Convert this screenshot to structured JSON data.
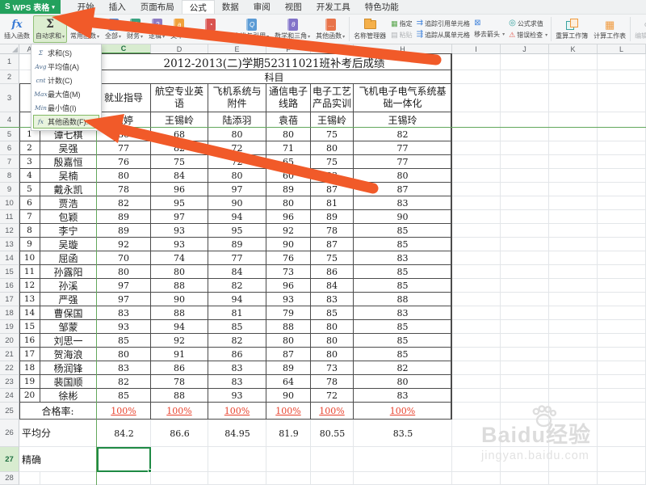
{
  "titlebar": {
    "logo_text": "S",
    "app_name": "WPS 表格",
    "tabs": [
      "开始",
      "插入",
      "页面布局",
      "公式",
      "数据",
      "审阅",
      "视图",
      "开发工具",
      "特色功能"
    ],
    "active_tab": "公式"
  },
  "ribbon": {
    "insert_function_label": "插入函数",
    "autosum_label": "自动求和",
    "categories": [
      {
        "label": "常用函数",
        "glyph": "fx",
        "color": "#5aa64e"
      },
      {
        "label": "全部",
        "glyph": "=",
        "color": "#4a89dc"
      },
      {
        "label": "财务",
        "glyph": "$",
        "color": "#3aa381"
      },
      {
        "label": "逻辑",
        "glyph": "?",
        "color": "#8e7cc3"
      },
      {
        "label": "文本",
        "glyph": "a",
        "color": "#f0a23c"
      },
      {
        "label": "日期和时间",
        "glyph": "◔",
        "color": "#d95450"
      },
      {
        "label": "查找与引用",
        "glyph": "Q",
        "color": "#5b9bd5"
      },
      {
        "label": "数学和三角",
        "glyph": "θ",
        "color": "#8273c9"
      },
      {
        "label": "其他函数",
        "glyph": "…",
        "color": "#e8734a"
      }
    ],
    "tools": {
      "name_manager": "名称管理器",
      "assign": "指定",
      "paste": "粘贴",
      "trace_precedents": "追踪引用单元格",
      "trace_dependents": "追踪从属单元格",
      "remove_arrows": "移去箭头",
      "evaluate_formula": "公式求值",
      "error_check": "错误检查",
      "recalc_workbook": "重算工作簿",
      "calc_worksheet": "计算工作表",
      "edit_links": "编辑链接"
    }
  },
  "autosum_menu": {
    "items": [
      {
        "icon": "Σ",
        "label": "求和(S)"
      },
      {
        "icon": "Avg",
        "label": "平均值(A)"
      },
      {
        "icon": "cnt",
        "label": "计数(C)"
      },
      {
        "icon": "Max",
        "label": "最大值(M)"
      },
      {
        "icon": "Min",
        "label": "最小值(I)"
      },
      {
        "icon": "fx",
        "label": "其他函数(F)..."
      }
    ],
    "highlighted_index": 5
  },
  "sheet": {
    "column_letters": [
      "A",
      "B",
      "C",
      "D",
      "E",
      "F",
      "G",
      "H",
      "I",
      "J",
      "K",
      "L"
    ],
    "title": "2012-2013(二)学期52311021班补考后成绩",
    "subject_row_label": "科目",
    "subjects": [
      {
        "name": "就业指导",
        "teacher": "徐婷"
      },
      {
        "name": "航空专业英语",
        "teacher": "王锡岭"
      },
      {
        "name": "飞机系统与附件",
        "teacher": "陆添羽"
      },
      {
        "name": "通信电子线路",
        "teacher": "袁蓓"
      },
      {
        "name": "电子工艺产品实训",
        "teacher": "王锡岭"
      },
      {
        "name": "飞机电子电气系统基础一体化",
        "teacher": "王锡玲"
      }
    ],
    "students": [
      {
        "no": "1",
        "name": "谭七棋",
        "scores": [
          "86",
          "68",
          "80",
          "80",
          "75",
          "82"
        ]
      },
      {
        "no": "2",
        "name": "吴强",
        "scores": [
          "77",
          "82",
          "72",
          "71",
          "80",
          "77"
        ]
      },
      {
        "no": "3",
        "name": "殷嘉恒",
        "scores": [
          "76",
          "75",
          "72",
          "65",
          "75",
          "77"
        ]
      },
      {
        "no": "4",
        "name": "吴楠",
        "scores": [
          "80",
          "84",
          "80",
          "60",
          "83",
          "80"
        ]
      },
      {
        "no": "5",
        "name": "戴永凯",
        "scores": [
          "78",
          "96",
          "97",
          "89",
          "87",
          "87"
        ]
      },
      {
        "no": "6",
        "name": "贾浩",
        "scores": [
          "82",
          "95",
          "90",
          "80",
          "81",
          "83"
        ]
      },
      {
        "no": "7",
        "name": "包颖",
        "scores": [
          "89",
          "97",
          "94",
          "96",
          "89",
          "90"
        ]
      },
      {
        "no": "8",
        "name": "李宁",
        "scores": [
          "89",
          "93",
          "95",
          "92",
          "78",
          "85"
        ]
      },
      {
        "no": "9",
        "name": "吴璇",
        "scores": [
          "92",
          "93",
          "89",
          "90",
          "87",
          "85"
        ]
      },
      {
        "no": "10",
        "name": "屈函",
        "scores": [
          "70",
          "74",
          "77",
          "76",
          "75",
          "83"
        ]
      },
      {
        "no": "11",
        "name": "孙露阳",
        "scores": [
          "80",
          "80",
          "84",
          "73",
          "86",
          "85"
        ]
      },
      {
        "no": "12",
        "name": "孙溪",
        "scores": [
          "97",
          "88",
          "82",
          "96",
          "84",
          "85"
        ]
      },
      {
        "no": "13",
        "name": "严强",
        "scores": [
          "97",
          "90",
          "94",
          "93",
          "83",
          "88"
        ]
      },
      {
        "no": "14",
        "name": "曹保国",
        "scores": [
          "83",
          "88",
          "81",
          "79",
          "85",
          "83"
        ]
      },
      {
        "no": "15",
        "name": "邹蒙",
        "scores": [
          "93",
          "94",
          "85",
          "88",
          "80",
          "85"
        ]
      },
      {
        "no": "16",
        "name": "刘思一",
        "scores": [
          "85",
          "92",
          "82",
          "80",
          "80",
          "85"
        ]
      },
      {
        "no": "17",
        "name": "贺海浪",
        "scores": [
          "80",
          "91",
          "86",
          "87",
          "80",
          "85"
        ]
      },
      {
        "no": "18",
        "name": "杨润锋",
        "scores": [
          "83",
          "86",
          "83",
          "89",
          "73",
          "82"
        ]
      },
      {
        "no": "19",
        "name": "裴国顺",
        "scores": [
          "82",
          "78",
          "83",
          "64",
          "78",
          "80"
        ]
      },
      {
        "no": "20",
        "name": "徐彬",
        "scores": [
          "85",
          "88",
          "93",
          "90",
          "72",
          "83"
        ]
      }
    ],
    "pass_rate_label": "合格率:",
    "pass_rates": [
      "100%",
      "100%",
      "100%",
      "100%",
      "100%",
      "100%"
    ],
    "average_label": "平均分",
    "averages": [
      "84.2",
      "86.6",
      "84.95",
      "81.9",
      "80.55",
      "83.5"
    ],
    "precision_label": "精确",
    "selected_cell": "C27"
  },
  "watermark": {
    "brand": "Baidu",
    "suffix": "经验",
    "url": "jingyan.baidu.com"
  },
  "colors": {
    "wps_green": "#23a15d",
    "selection_green": "#1f8a44",
    "freeze_line_green": "#63a85c",
    "arrow_orange": "#f15a29",
    "pass_rate_red": "#e8432e",
    "autosum_pressed_bg": "#dcedd0"
  }
}
